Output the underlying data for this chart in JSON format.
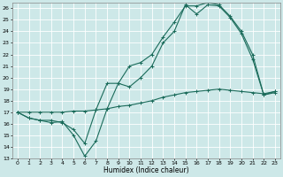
{
  "xlabel": "Humidex (Indice chaleur)",
  "bg_color": "#cde8e8",
  "grid_color": "#ffffff",
  "line_color": "#1a6b5a",
  "xlim": [
    -0.5,
    23.5
  ],
  "ylim": [
    13,
    26.5
  ],
  "yticks": [
    13,
    14,
    15,
    16,
    17,
    18,
    19,
    20,
    21,
    22,
    23,
    24,
    25,
    26
  ],
  "xticks": [
    0,
    1,
    2,
    3,
    4,
    5,
    6,
    7,
    8,
    9,
    10,
    11,
    12,
    13,
    14,
    15,
    16,
    17,
    18,
    19,
    20,
    21,
    22,
    23
  ],
  "line1_x": [
    0,
    1,
    2,
    3,
    4,
    5,
    6,
    7,
    8,
    9,
    10,
    11,
    12,
    13,
    14,
    15,
    16,
    17,
    18,
    19,
    20,
    21,
    22,
    23
  ],
  "line1_y": [
    17.0,
    16.5,
    16.3,
    16.1,
    16.2,
    15.0,
    13.2,
    14.5,
    17.3,
    19.5,
    19.2,
    20.0,
    21.0,
    23.0,
    24.0,
    26.3,
    25.5,
    26.3,
    26.2,
    25.2,
    23.8,
    21.6,
    18.5,
    18.7
  ],
  "line2_x": [
    0,
    1,
    2,
    3,
    4,
    5,
    6,
    7,
    8,
    9,
    10,
    11,
    12,
    13,
    14,
    15,
    16,
    17,
    18,
    19,
    20,
    21,
    22,
    23
  ],
  "line2_y": [
    17.0,
    16.5,
    16.3,
    16.3,
    16.1,
    15.5,
    14.3,
    17.2,
    19.5,
    19.5,
    21.0,
    21.3,
    22.0,
    23.5,
    24.8,
    26.2,
    26.2,
    26.5,
    26.3,
    25.3,
    24.0,
    22.0,
    18.5,
    18.8
  ],
  "line3_x": [
    0,
    1,
    2,
    3,
    4,
    5,
    6,
    7,
    8,
    9,
    10,
    11,
    12,
    13,
    14,
    15,
    16,
    17,
    18,
    19,
    20,
    21,
    22,
    23
  ],
  "line3_y": [
    17.0,
    17.0,
    17.0,
    17.0,
    17.0,
    17.1,
    17.1,
    17.2,
    17.3,
    17.5,
    17.6,
    17.8,
    18.0,
    18.3,
    18.5,
    18.7,
    18.8,
    18.9,
    19.0,
    18.9,
    18.8,
    18.7,
    18.6,
    18.8
  ]
}
